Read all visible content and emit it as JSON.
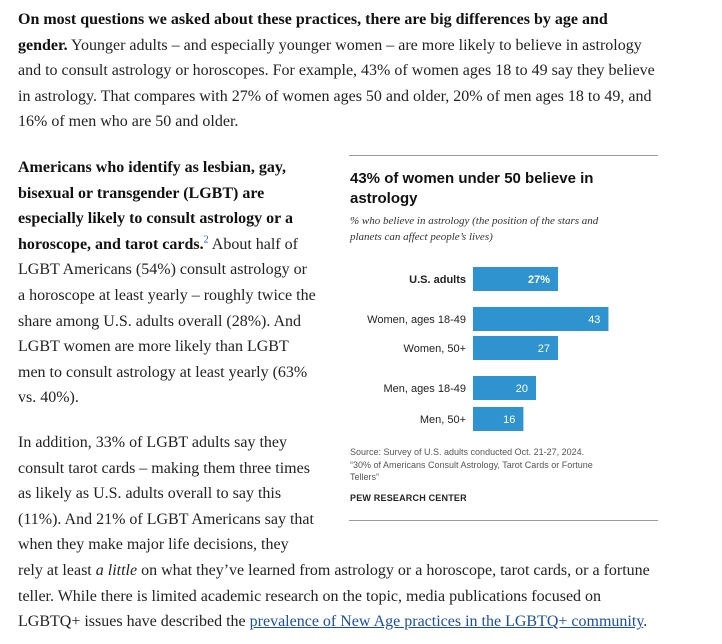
{
  "para1": {
    "l1_bold": "On most questions we asked about these practices, there are big differences by age and",
    "l2_bold": "gender.",
    "l2_rest": " Younger adults – and especially younger women – are more likely to believe in astrology",
    "l3": "and to consult astrology or horoscopes. For example, 43% of women ages 18 to 49 say they believe",
    "l4": "in astrology. That compares with 27% of women ages 50 and older, 20% of men ages 18 to 49, and",
    "l5": "16% of men who are 50 and older."
  },
  "para2": {
    "l1_bold": "Americans who identify as lesbian, gay,",
    "l2_bold": "bisexual or transgender (LGBT) are",
    "l3_bold": "especially likely to consult astrology or a",
    "l4_bold": "horoscope, and tarot cards.",
    "footnote": "2",
    "l4_rest": " About half of",
    "l5": "LGBT Americans (54%) consult astrology or",
    "l6": "a horoscope at least yearly – roughly twice the",
    "l7": "share among U.S. adults overall (28%). And",
    "l8": "LGBT women are more likely than LGBT",
    "l9": "men to consult astrology at least yearly (63%",
    "l10": "vs. 40%)."
  },
  "para3": {
    "l1": "In addition, 33% of LGBT adults say they",
    "l2": "consult tarot cards – making them three times",
    "l3": "as likely as U.S. adults overall to say this",
    "l4": "(11%). And 21% of LGBT Americans say that",
    "l5": "when they make major life decisions, they",
    "l6_pre": "rely at least ",
    "l6_em": "a little",
    "l6_post": " on what they’ve learned from astrology or a horoscope, tarot cards, or a fortune",
    "l7": "teller. While there is limited academic research on the topic, media publications focused on",
    "l8_pre": "LGBTQ+ issues have described the ",
    "l8_link": "prevalence of New Age practices in the LGBTQ+ community",
    "l8_post": "."
  },
  "figure": {
    "title_l1": "43% of women under 50 believe in",
    "title_l2": "astrology",
    "subtitle_l1": "% who believe in astrology (the position of the stars and",
    "subtitle_l2": "planets can affect people’s lives)",
    "source_l1": "Source: Survey of U.S. adults conducted Oct. 21-27, 2024.",
    "source_l2": "“30% of Americans Consult Astrology, Tarot Cards or Fortune",
    "source_l3": "Tellers”",
    "brand": "PEW RESEARCH CENTER"
  },
  "chart_data": {
    "type": "bar",
    "orientation": "horizontal",
    "categories": [
      "U.S. adults",
      "Women, ages 18-49",
      "Women, 50+",
      "Men, ages 18-49",
      "Men, 50+"
    ],
    "values": [
      27,
      43,
      27,
      20,
      16
    ],
    "value_labels": [
      "27%",
      "43",
      "27",
      "20",
      "16"
    ],
    "bar_color": "#2f93cf",
    "grid": false
  }
}
